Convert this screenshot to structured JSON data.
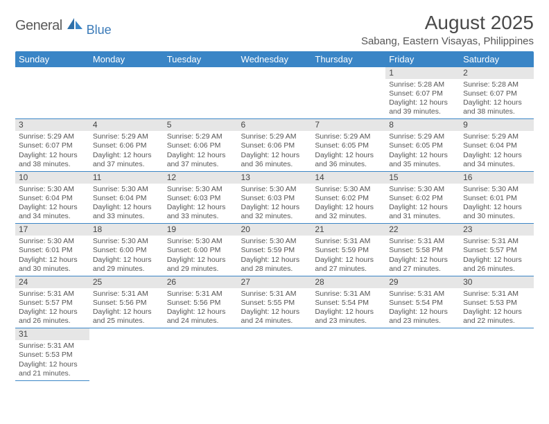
{
  "logo": {
    "main": "General",
    "sub": "Blue"
  },
  "title": "August 2025",
  "subtitle": "Sabang, Eastern Visayas, Philippines",
  "colors": {
    "header_bg": "#3a85c6",
    "header_fg": "#ffffff",
    "daynum_bg": "#e6e6e6",
    "row_border": "#3a85c6"
  },
  "day_headers": [
    "Sunday",
    "Monday",
    "Tuesday",
    "Wednesday",
    "Thursday",
    "Friday",
    "Saturday"
  ],
  "weeks": [
    [
      null,
      null,
      null,
      null,
      null,
      {
        "n": "1",
        "sunrise": "5:28 AM",
        "sunset": "6:07 PM",
        "hrs": "12",
        "mins": "39"
      },
      {
        "n": "2",
        "sunrise": "5:28 AM",
        "sunset": "6:07 PM",
        "hrs": "12",
        "mins": "38"
      }
    ],
    [
      {
        "n": "3",
        "sunrise": "5:29 AM",
        "sunset": "6:07 PM",
        "hrs": "12",
        "mins": "38"
      },
      {
        "n": "4",
        "sunrise": "5:29 AM",
        "sunset": "6:06 PM",
        "hrs": "12",
        "mins": "37"
      },
      {
        "n": "5",
        "sunrise": "5:29 AM",
        "sunset": "6:06 PM",
        "hrs": "12",
        "mins": "37"
      },
      {
        "n": "6",
        "sunrise": "5:29 AM",
        "sunset": "6:06 PM",
        "hrs": "12",
        "mins": "36"
      },
      {
        "n": "7",
        "sunrise": "5:29 AM",
        "sunset": "6:05 PM",
        "hrs": "12",
        "mins": "36"
      },
      {
        "n": "8",
        "sunrise": "5:29 AM",
        "sunset": "6:05 PM",
        "hrs": "12",
        "mins": "35"
      },
      {
        "n": "9",
        "sunrise": "5:29 AM",
        "sunset": "6:04 PM",
        "hrs": "12",
        "mins": "34"
      }
    ],
    [
      {
        "n": "10",
        "sunrise": "5:30 AM",
        "sunset": "6:04 PM",
        "hrs": "12",
        "mins": "34"
      },
      {
        "n": "11",
        "sunrise": "5:30 AM",
        "sunset": "6:04 PM",
        "hrs": "12",
        "mins": "33"
      },
      {
        "n": "12",
        "sunrise": "5:30 AM",
        "sunset": "6:03 PM",
        "hrs": "12",
        "mins": "33"
      },
      {
        "n": "13",
        "sunrise": "5:30 AM",
        "sunset": "6:03 PM",
        "hrs": "12",
        "mins": "32"
      },
      {
        "n": "14",
        "sunrise": "5:30 AM",
        "sunset": "6:02 PM",
        "hrs": "12",
        "mins": "32"
      },
      {
        "n": "15",
        "sunrise": "5:30 AM",
        "sunset": "6:02 PM",
        "hrs": "12",
        "mins": "31"
      },
      {
        "n": "16",
        "sunrise": "5:30 AM",
        "sunset": "6:01 PM",
        "hrs": "12",
        "mins": "30"
      }
    ],
    [
      {
        "n": "17",
        "sunrise": "5:30 AM",
        "sunset": "6:01 PM",
        "hrs": "12",
        "mins": "30"
      },
      {
        "n": "18",
        "sunrise": "5:30 AM",
        "sunset": "6:00 PM",
        "hrs": "12",
        "mins": "29"
      },
      {
        "n": "19",
        "sunrise": "5:30 AM",
        "sunset": "6:00 PM",
        "hrs": "12",
        "mins": "29"
      },
      {
        "n": "20",
        "sunrise": "5:30 AM",
        "sunset": "5:59 PM",
        "hrs": "12",
        "mins": "28"
      },
      {
        "n": "21",
        "sunrise": "5:31 AM",
        "sunset": "5:59 PM",
        "hrs": "12",
        "mins": "27"
      },
      {
        "n": "22",
        "sunrise": "5:31 AM",
        "sunset": "5:58 PM",
        "hrs": "12",
        "mins": "27"
      },
      {
        "n": "23",
        "sunrise": "5:31 AM",
        "sunset": "5:57 PM",
        "hrs": "12",
        "mins": "26"
      }
    ],
    [
      {
        "n": "24",
        "sunrise": "5:31 AM",
        "sunset": "5:57 PM",
        "hrs": "12",
        "mins": "26"
      },
      {
        "n": "25",
        "sunrise": "5:31 AM",
        "sunset": "5:56 PM",
        "hrs": "12",
        "mins": "25"
      },
      {
        "n": "26",
        "sunrise": "5:31 AM",
        "sunset": "5:56 PM",
        "hrs": "12",
        "mins": "24"
      },
      {
        "n": "27",
        "sunrise": "5:31 AM",
        "sunset": "5:55 PM",
        "hrs": "12",
        "mins": "24"
      },
      {
        "n": "28",
        "sunrise": "5:31 AM",
        "sunset": "5:54 PM",
        "hrs": "12",
        "mins": "23"
      },
      {
        "n": "29",
        "sunrise": "5:31 AM",
        "sunset": "5:54 PM",
        "hrs": "12",
        "mins": "23"
      },
      {
        "n": "30",
        "sunrise": "5:31 AM",
        "sunset": "5:53 PM",
        "hrs": "12",
        "mins": "22"
      }
    ],
    [
      {
        "n": "31",
        "sunrise": "5:31 AM",
        "sunset": "5:53 PM",
        "hrs": "12",
        "mins": "21"
      },
      null,
      null,
      null,
      null,
      null,
      null
    ]
  ]
}
